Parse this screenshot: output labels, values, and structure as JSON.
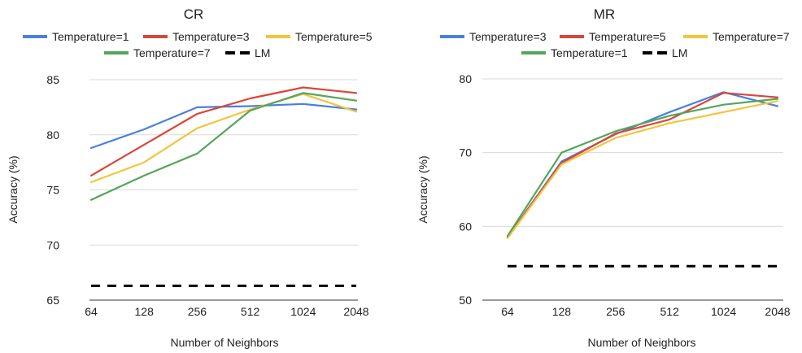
{
  "chart_data": [
    {
      "type": "line",
      "title": "CR",
      "xlabel": "Number of Neighbors",
      "ylabel": "Accuracy (%)",
      "categories": [
        "64",
        "128",
        "256",
        "512",
        "1024",
        "2048"
      ],
      "ylim": [
        65,
        85
      ],
      "yticks": [
        "65",
        "70",
        "75",
        "80",
        "85"
      ],
      "grid": true,
      "legend_position": "top",
      "series": [
        {
          "name": "Temperature=1",
          "color": "#4a7fe0",
          "values": [
            78.8,
            80.5,
            82.5,
            82.6,
            82.8,
            82.3
          ]
        },
        {
          "name": "Temperature=3",
          "color": "#d9463b",
          "values": [
            76.3,
            79.1,
            81.9,
            83.3,
            84.3,
            83.8
          ]
        },
        {
          "name": "Temperature=5",
          "color": "#f3c43c",
          "values": [
            75.7,
            77.5,
            80.6,
            82.3,
            83.7,
            82.1
          ]
        },
        {
          "name": "Temperature=7",
          "color": "#55a55a",
          "values": [
            74.1,
            76.3,
            78.3,
            82.2,
            83.8,
            83.1
          ]
        },
        {
          "name": "LM",
          "color": "#000000",
          "dashed": true,
          "values": [
            66.3,
            66.3,
            66.3,
            66.3,
            66.3,
            66.3
          ]
        }
      ]
    },
    {
      "type": "line",
      "title": "MR",
      "xlabel": "Number of Neighbors",
      "ylabel": "Accuracy (%)",
      "categories": [
        "64",
        "128",
        "256",
        "512",
        "1024",
        "2048"
      ],
      "ylim": [
        50,
        80
      ],
      "yticks": [
        "50",
        "60",
        "70",
        "80"
      ],
      "grid": true,
      "legend_position": "top",
      "series": [
        {
          "name": "Temperature=3",
          "color": "#4a7fe0",
          "values": [
            58.5,
            68.8,
            72.5,
            75.5,
            78.2,
            76.3
          ]
        },
        {
          "name": "Temperature=5",
          "color": "#d9463b",
          "values": [
            58.5,
            68.6,
            72.6,
            74.5,
            78.1,
            77.5
          ]
        },
        {
          "name": "Temperature=7",
          "color": "#f3c43c",
          "values": [
            58.4,
            68.4,
            72.0,
            74.0,
            75.5,
            77.0
          ]
        },
        {
          "name": "Temperature=1",
          "color": "#55a55a",
          "values": [
            58.7,
            70.0,
            72.9,
            75.0,
            76.5,
            77.3
          ]
        },
        {
          "name": "LM",
          "color": "#000000",
          "dashed": true,
          "values": [
            54.6,
            54.6,
            54.6,
            54.6,
            54.6,
            54.6
          ]
        }
      ]
    }
  ]
}
